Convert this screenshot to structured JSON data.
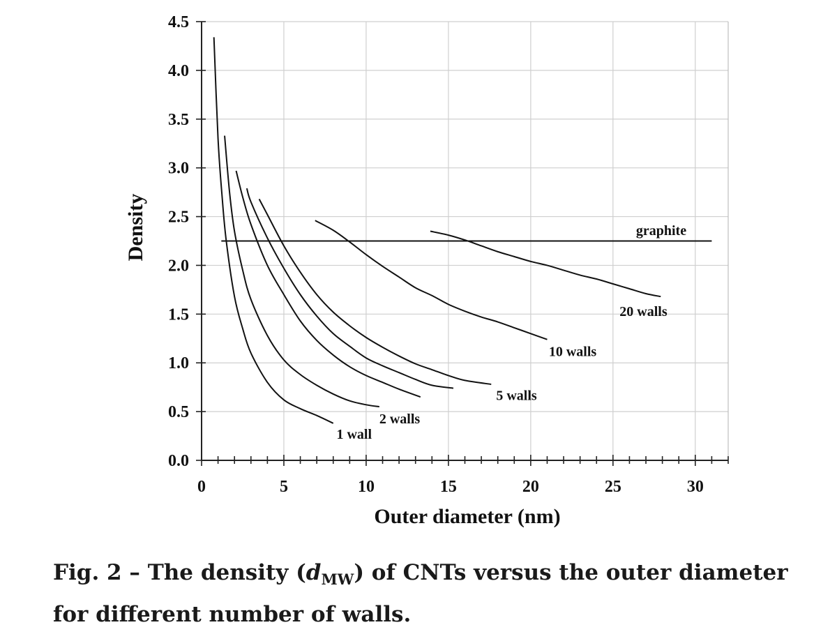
{
  "chart_data": {
    "type": "line",
    "title": "",
    "xlabel": "Outer diameter (nm)",
    "ylabel": "Density",
    "xlim": [
      0,
      32
    ],
    "ylim": [
      0,
      4.5
    ],
    "x_ticks": [
      0,
      5,
      10,
      15,
      20,
      25,
      30
    ],
    "y_ticks": [
      "0.0",
      "0.5",
      "1.0",
      "1.5",
      "2.0",
      "2.5",
      "3.0",
      "3.5",
      "4.0",
      "4.5"
    ],
    "grid": true,
    "series": [
      {
        "name": "1 wall",
        "points": [
          [
            0.75,
            4.34
          ],
          [
            1.0,
            3.3
          ],
          [
            1.25,
            2.7
          ],
          [
            1.5,
            2.25
          ],
          [
            2.0,
            1.68
          ],
          [
            2.5,
            1.35
          ],
          [
            3.0,
            1.1
          ],
          [
            4.0,
            0.8
          ],
          [
            5.0,
            0.62
          ],
          [
            6.0,
            0.53
          ],
          [
            7.0,
            0.46
          ],
          [
            8.0,
            0.38
          ]
        ]
      },
      {
        "name": "2 walls",
        "points": [
          [
            1.4,
            3.33
          ],
          [
            1.7,
            2.75
          ],
          [
            2.0,
            2.35
          ],
          [
            2.5,
            1.95
          ],
          [
            3.0,
            1.65
          ],
          [
            4.0,
            1.28
          ],
          [
            5.0,
            1.03
          ],
          [
            6.0,
            0.88
          ],
          [
            7.0,
            0.77
          ],
          [
            8.0,
            0.68
          ],
          [
            9.0,
            0.61
          ],
          [
            10.0,
            0.57
          ],
          [
            10.8,
            0.55
          ]
        ]
      },
      {
        "name": "",
        "points": [
          [
            2.1,
            2.97
          ],
          [
            2.5,
            2.7
          ],
          [
            3.0,
            2.42
          ],
          [
            4.0,
            2.0
          ],
          [
            5.0,
            1.7
          ],
          [
            6.0,
            1.43
          ],
          [
            7.0,
            1.23
          ],
          [
            8.0,
            1.08
          ],
          [
            9.0,
            0.96
          ],
          [
            10.0,
            0.87
          ],
          [
            11.0,
            0.8
          ],
          [
            12.0,
            0.73
          ],
          [
            13.3,
            0.65
          ]
        ]
      },
      {
        "name": "",
        "points": [
          [
            2.75,
            2.79
          ],
          [
            3.0,
            2.65
          ],
          [
            4.0,
            2.28
          ],
          [
            5.0,
            1.97
          ],
          [
            6.0,
            1.7
          ],
          [
            7.0,
            1.48
          ],
          [
            8.0,
            1.3
          ],
          [
            9.0,
            1.17
          ],
          [
            10.0,
            1.05
          ],
          [
            11.0,
            0.97
          ],
          [
            12.0,
            0.9
          ],
          [
            13.0,
            0.83
          ],
          [
            14.0,
            0.77
          ],
          [
            15.3,
            0.74
          ]
        ]
      },
      {
        "name": "5 walls",
        "points": [
          [
            3.5,
            2.68
          ],
          [
            4.0,
            2.52
          ],
          [
            5.0,
            2.2
          ],
          [
            6.0,
            1.93
          ],
          [
            7.0,
            1.7
          ],
          [
            8.0,
            1.52
          ],
          [
            9.0,
            1.38
          ],
          [
            10.0,
            1.26
          ],
          [
            11.0,
            1.16
          ],
          [
            12.0,
            1.07
          ],
          [
            13.0,
            0.99
          ],
          [
            14.0,
            0.93
          ],
          [
            15.0,
            0.87
          ],
          [
            16.0,
            0.82
          ],
          [
            17.6,
            0.78
          ]
        ]
      },
      {
        "name": "10 walls",
        "points": [
          [
            6.9,
            2.46
          ],
          [
            8.0,
            2.36
          ],
          [
            9.0,
            2.24
          ],
          [
            10.0,
            2.11
          ],
          [
            11.0,
            1.99
          ],
          [
            12.0,
            1.88
          ],
          [
            13.0,
            1.77
          ],
          [
            14.0,
            1.69
          ],
          [
            15.0,
            1.6
          ],
          [
            16.0,
            1.53
          ],
          [
            17.0,
            1.47
          ],
          [
            18.0,
            1.42
          ],
          [
            19.0,
            1.36
          ],
          [
            20.0,
            1.3
          ],
          [
            21.0,
            1.24
          ]
        ]
      },
      {
        "name": "20 walls",
        "points": [
          [
            13.9,
            2.35
          ],
          [
            15.0,
            2.31
          ],
          [
            16.0,
            2.26
          ],
          [
            17.0,
            2.2
          ],
          [
            18.0,
            2.14
          ],
          [
            19.0,
            2.09
          ],
          [
            20.0,
            2.04
          ],
          [
            21.0,
            2.0
          ],
          [
            22.0,
            1.95
          ],
          [
            23.0,
            1.9
          ],
          [
            24.0,
            1.86
          ],
          [
            25.0,
            1.81
          ],
          [
            26.0,
            1.76
          ],
          [
            27.0,
            1.71
          ],
          [
            27.9,
            1.68
          ]
        ]
      },
      {
        "name": "graphite",
        "points": [
          [
            1.2,
            2.25
          ],
          [
            31.0,
            2.25
          ]
        ]
      }
    ]
  },
  "caption": {
    "prefix": "Fig. 2 – The density (",
    "symbol": "d",
    "subscript": "MW",
    "suffix": ") of CNTs versus the outer diameter for different number of walls."
  }
}
